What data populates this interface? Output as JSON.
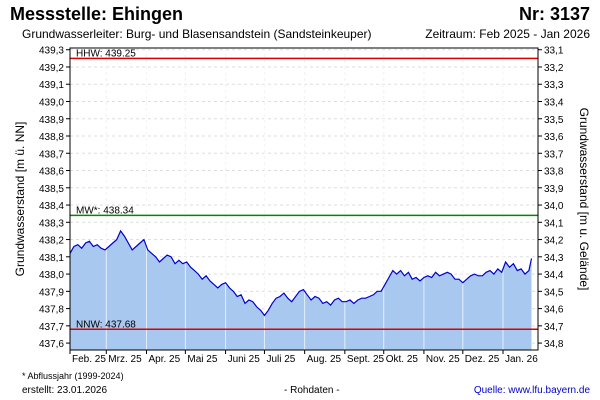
{
  "header": {
    "station": "Messstelle: Ehingen",
    "number": "Nr: 3137",
    "aquifer": "Grundwasserleiter:   Burg- und Blasensandstein (Sandsteinkeuper)",
    "period": "Zeitraum: Feb 2025 - Jan 2026"
  },
  "footer": {
    "note": "* Abflussjahr (1999-2024)",
    "created": "erstellt:  23.01.2026",
    "raw": "- Rohdaten -",
    "source": "Quelle: www.lfu.bayern.de"
  },
  "colors": {
    "series_line": "#0000cc",
    "series_fill": "#a8c8f0",
    "hhw_line": "#dd0000",
    "nnw_line": "#dd0000",
    "mw_line": "#008800"
  },
  "chart_data": {
    "type": "area",
    "ylabel": "Grundwasserstand [m ü. NN]",
    "ylabel_right": "Grundwasserstand [m u. Gelände]",
    "ylim": [
      437.56,
      439.31
    ],
    "yticks": [
      "437,6",
      "437,7",
      "437,8",
      "437,9",
      "438,0",
      "438,1",
      "438,2",
      "438,3",
      "438,4",
      "438,5",
      "438,6",
      "438,7",
      "438,8",
      "438,9",
      "439,0",
      "439,1",
      "439,2",
      "439,3"
    ],
    "yticks_right": [
      "34,8",
      "34,7",
      "34,6",
      "34,5",
      "34,4",
      "34,3",
      "34,2",
      "34,1",
      "34,0",
      "33,9",
      "33,8",
      "33,7",
      "33,6",
      "33,5",
      "33,4",
      "33,3",
      "33,2",
      "33,1"
    ],
    "right_axis_reference": 472.1,
    "xlim": [
      "2025-02-01",
      "2026-01-28"
    ],
    "xticks": [
      {
        "date": "2025-02-01",
        "label": "Feb. 25"
      },
      {
        "date": "2025-03-01",
        "label": "Mrz. 25"
      },
      {
        "date": "2025-04-01",
        "label": "Apr. 25"
      },
      {
        "date": "2025-05-01",
        "label": "Mai 25"
      },
      {
        "date": "2025-06-01",
        "label": "Juni 25"
      },
      {
        "date": "2025-07-01",
        "label": "Juli 25"
      },
      {
        "date": "2025-08-01",
        "label": "Aug. 25"
      },
      {
        "date": "2025-09-01",
        "label": "Sept. 25"
      },
      {
        "date": "2025-10-01",
        "label": "Okt. 25"
      },
      {
        "date": "2025-11-01",
        "label": "Nov. 25"
      },
      {
        "date": "2025-12-01",
        "label": "Dez. 25"
      },
      {
        "date": "2026-01-01",
        "label": "Jan. 26"
      }
    ],
    "reference_lines": [
      {
        "name": "HHW",
        "label": "HHW: 439.25",
        "value": 439.25
      },
      {
        "name": "MW",
        "label": "MW*: 438.34",
        "value": 438.34
      },
      {
        "name": "NNW",
        "label": "NNW: 437.68",
        "value": 437.68
      }
    ],
    "grid": true,
    "series": [
      {
        "x": [
          "2025-02-01",
          "2025-02-04",
          "2025-02-07",
          "2025-02-10",
          "2025-02-13",
          "2025-02-16",
          "2025-02-19",
          "2025-02-22",
          "2025-02-25",
          "2025-02-28",
          "2025-03-03",
          "2025-03-06",
          "2025-03-09",
          "2025-03-12",
          "2025-03-15",
          "2025-03-18",
          "2025-03-21",
          "2025-03-24",
          "2025-03-27",
          "2025-03-30",
          "2025-04-02",
          "2025-04-05",
          "2025-04-08",
          "2025-04-11",
          "2025-04-14",
          "2025-04-17",
          "2025-04-20",
          "2025-04-23",
          "2025-04-26",
          "2025-04-29",
          "2025-05-02",
          "2025-05-05",
          "2025-05-08",
          "2025-05-11",
          "2025-05-14",
          "2025-05-17",
          "2025-05-20",
          "2025-05-23",
          "2025-05-26",
          "2025-05-29",
          "2025-06-01",
          "2025-06-04",
          "2025-06-07",
          "2025-06-10",
          "2025-06-13",
          "2025-06-16",
          "2025-06-19",
          "2025-06-22",
          "2025-06-25",
          "2025-06-28",
          "2025-07-01",
          "2025-07-04",
          "2025-07-07",
          "2025-07-10",
          "2025-07-13",
          "2025-07-16",
          "2025-07-19",
          "2025-07-22",
          "2025-07-25",
          "2025-07-28",
          "2025-07-31",
          "2025-08-03",
          "2025-08-06",
          "2025-08-09",
          "2025-08-12",
          "2025-08-15",
          "2025-08-18",
          "2025-08-21",
          "2025-08-24",
          "2025-08-27",
          "2025-08-30",
          "2025-09-02",
          "2025-09-05",
          "2025-09-08",
          "2025-09-11",
          "2025-09-14",
          "2025-09-17",
          "2025-09-20",
          "2025-09-23",
          "2025-09-26",
          "2025-09-29",
          "2025-10-02",
          "2025-10-05",
          "2025-10-08",
          "2025-10-11",
          "2025-10-14",
          "2025-10-17",
          "2025-10-20",
          "2025-10-23",
          "2025-10-26",
          "2025-10-29",
          "2025-11-01",
          "2025-11-04",
          "2025-11-07",
          "2025-11-10",
          "2025-11-13",
          "2025-11-16",
          "2025-11-19",
          "2025-11-22",
          "2025-11-25",
          "2025-11-28",
          "2025-12-01",
          "2025-12-04",
          "2025-12-07",
          "2025-12-10",
          "2025-12-13",
          "2025-12-16",
          "2025-12-19",
          "2025-12-22",
          "2025-12-25",
          "2025-12-28",
          "2025-12-31",
          "2026-01-03",
          "2026-01-06",
          "2026-01-09",
          "2026-01-12",
          "2026-01-15",
          "2026-01-18",
          "2026-01-21",
          "2026-01-23"
        ],
        "y": [
          438.12,
          438.16,
          438.17,
          438.15,
          438.18,
          438.19,
          438.16,
          438.17,
          438.15,
          438.14,
          438.16,
          438.18,
          438.2,
          438.25,
          438.22,
          438.18,
          438.14,
          438.16,
          438.18,
          438.2,
          438.14,
          438.12,
          438.1,
          438.07,
          438.09,
          438.11,
          438.1,
          438.06,
          438.08,
          438.06,
          438.07,
          438.04,
          438.02,
          438.0,
          437.97,
          437.99,
          437.96,
          437.94,
          437.92,
          437.94,
          437.95,
          437.92,
          437.9,
          437.87,
          437.88,
          437.83,
          437.85,
          437.84,
          437.81,
          437.79,
          437.76,
          437.79,
          437.83,
          437.86,
          437.87,
          437.89,
          437.86,
          437.84,
          437.87,
          437.9,
          437.91,
          437.88,
          437.85,
          437.87,
          437.86,
          437.83,
          437.84,
          437.82,
          437.85,
          437.86,
          437.84,
          437.84,
          437.85,
          437.83,
          437.85,
          437.86,
          437.86,
          437.87,
          437.88,
          437.9,
          437.9,
          437.94,
          437.98,
          438.02,
          438.0,
          438.02,
          437.99,
          438.01,
          437.97,
          437.98,
          437.96,
          437.98,
          437.99,
          437.98,
          438.01,
          437.99,
          438.0,
          438.01,
          438.0,
          437.97,
          437.97,
          437.95,
          437.97,
          437.99,
          438.0,
          437.99,
          437.99,
          438.01,
          438.02,
          438.0,
          438.03,
          438.01,
          438.07,
          438.04,
          438.06,
          438.02,
          438.03,
          438.0,
          438.02,
          438.09
        ]
      }
    ]
  }
}
